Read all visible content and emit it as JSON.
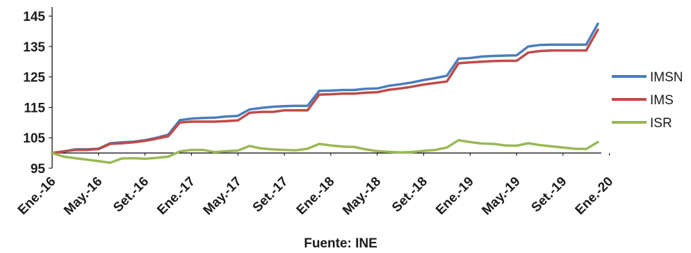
{
  "chart_data": {
    "type": "line",
    "ylim": [
      95,
      148
    ],
    "yticks": [
      95,
      105,
      115,
      125,
      135,
      145
    ],
    "xtick_labels": [
      "Ene.-16",
      "May.-16",
      "Set.-16",
      "Ene.-17",
      "May.-17",
      "Set.-17",
      "Ene.-18",
      "May.-18",
      "Set.-18",
      "Ene.-19",
      "May.-19",
      "Set.-19",
      "Ene.-20"
    ],
    "baseline": 100,
    "legend_position": "right",
    "source": "Fuente: INE",
    "series": [
      {
        "name": "IMSN",
        "color": "#4a7ebb",
        "values": [
          100,
          100.5,
          101.2,
          101.2,
          101.4,
          103.2,
          103.5,
          103.7,
          104.2,
          105,
          106,
          110.8,
          111.3,
          111.5,
          111.6,
          112,
          112.2,
          114.3,
          114.8,
          115.2,
          115.4,
          115.5,
          115.5,
          120.4,
          120.5,
          120.7,
          120.7,
          121.1,
          121.2,
          122.1,
          122.6,
          123.2,
          124,
          124.6,
          125.4,
          131,
          131.2,
          131.7,
          131.9,
          132,
          132.1,
          135,
          135.5,
          135.6,
          135.6,
          135.6,
          135.6,
          142.5
        ]
      },
      {
        "name": "IMS",
        "color": "#be4b48",
        "values": [
          100,
          100.5,
          101,
          101,
          101.3,
          103,
          103.2,
          103.5,
          104,
          104.7,
          105.5,
          110,
          110.3,
          110.3,
          110.3,
          110.5,
          110.7,
          113.2,
          113.5,
          113.5,
          114,
          114,
          114,
          119.2,
          119.3,
          119.5,
          119.5,
          119.8,
          120,
          120.8,
          121.2,
          121.8,
          122.5,
          123,
          123.5,
          129.5,
          129.8,
          130,
          130.2,
          130.3,
          130.3,
          133,
          133.5,
          133.7,
          133.7,
          133.7,
          133.7,
          140.5
        ]
      },
      {
        "name": "ISR",
        "color": "#98b954",
        "values": [
          100,
          98.8,
          98.3,
          97.8,
          97.3,
          96.8,
          98.2,
          98.3,
          98.1,
          98.4,
          98.8,
          100.5,
          101,
          101,
          100.3,
          100.6,
          100.8,
          102.3,
          101.5,
          101.2,
          101,
          100.9,
          101.4,
          103,
          102.5,
          102.1,
          102,
          101.2,
          100.6,
          100.4,
          100.2,
          100.3,
          100.7,
          101,
          101.8,
          104.2,
          103.6,
          103.1,
          103,
          102.5,
          102.4,
          103.2,
          102.6,
          102.2,
          101.8,
          101.4,
          101.3,
          103.6
        ]
      }
    ]
  }
}
